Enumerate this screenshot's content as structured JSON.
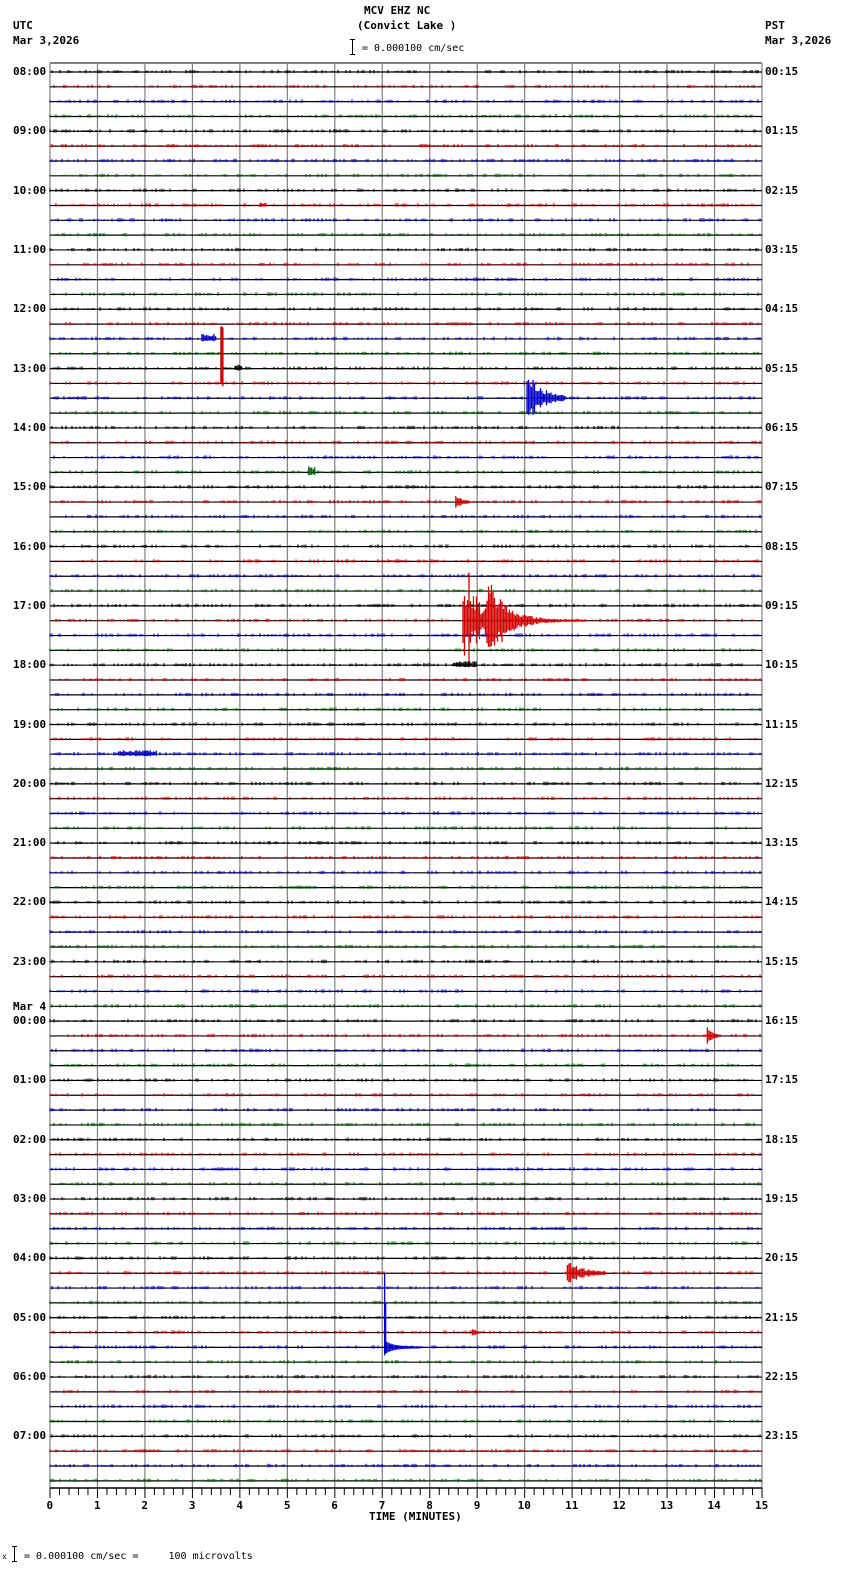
{
  "header": {
    "station": "MCV EHZ NC",
    "location": "(Convict Lake )",
    "left_tz": "UTC",
    "left_date": "Mar 3,2026",
    "right_tz": "PST",
    "right_date": "Mar 3,2026",
    "scale_text": "= 0.000100 cm/sec"
  },
  "footer": {
    "scale_text": "= 0.000100 cm/sec =     100 microvolts",
    "scale_prefix": "x"
  },
  "colors": {
    "trace_cycle": [
      "#000000",
      "#d00000",
      "#0000c8",
      "#006000"
    ],
    "baseline": "#000000",
    "grid": "#808080",
    "axis": "#000000"
  },
  "chart_data": {
    "type": "line",
    "title": "MCV EHZ NC (Convict Lake )",
    "subtitle": "Helicorder seismogram, 15 minutes per trace, 96 traces",
    "xlabel": "TIME (MINUTES)",
    "ylabel": "",
    "xlim": [
      0,
      15
    ],
    "x_ticks": [
      "0",
      "1",
      "2",
      "3",
      "4",
      "5",
      "6",
      "7",
      "8",
      "9",
      "10",
      "11",
      "12",
      "13",
      "14",
      "15"
    ],
    "grid": true,
    "traces_per_hour": 4,
    "trace_count": 96,
    "left_labels": [
      {
        "row": 0,
        "text": "08:00"
      },
      {
        "row": 4,
        "text": "09:00"
      },
      {
        "row": 8,
        "text": "10:00"
      },
      {
        "row": 12,
        "text": "11:00"
      },
      {
        "row": 16,
        "text": "12:00"
      },
      {
        "row": 20,
        "text": "13:00"
      },
      {
        "row": 24,
        "text": "14:00"
      },
      {
        "row": 28,
        "text": "15:00"
      },
      {
        "row": 32,
        "text": "16:00"
      },
      {
        "row": 36,
        "text": "17:00"
      },
      {
        "row": 40,
        "text": "18:00"
      },
      {
        "row": 44,
        "text": "19:00"
      },
      {
        "row": 48,
        "text": "20:00"
      },
      {
        "row": 52,
        "text": "21:00"
      },
      {
        "row": 56,
        "text": "22:00"
      },
      {
        "row": 60,
        "text": "23:00"
      },
      {
        "row": 64,
        "text": "00:00",
        "date": "Mar 4"
      },
      {
        "row": 68,
        "text": "01:00"
      },
      {
        "row": 72,
        "text": "02:00"
      },
      {
        "row": 76,
        "text": "03:00"
      },
      {
        "row": 80,
        "text": "04:00"
      },
      {
        "row": 84,
        "text": "05:00"
      },
      {
        "row": 88,
        "text": "06:00"
      },
      {
        "row": 92,
        "text": "07:00"
      }
    ],
    "right_labels": [
      {
        "row": 0,
        "text": "00:15"
      },
      {
        "row": 4,
        "text": "01:15"
      },
      {
        "row": 8,
        "text": "02:15"
      },
      {
        "row": 12,
        "text": "03:15"
      },
      {
        "row": 16,
        "text": "04:15"
      },
      {
        "row": 20,
        "text": "05:15"
      },
      {
        "row": 24,
        "text": "06:15"
      },
      {
        "row": 28,
        "text": "07:15"
      },
      {
        "row": 32,
        "text": "08:15"
      },
      {
        "row": 36,
        "text": "09:15"
      },
      {
        "row": 40,
        "text": "10:15"
      },
      {
        "row": 44,
        "text": "11:15"
      },
      {
        "row": 48,
        "text": "12:15"
      },
      {
        "row": 52,
        "text": "13:15"
      },
      {
        "row": 56,
        "text": "14:15"
      },
      {
        "row": 60,
        "text": "15:15"
      },
      {
        "row": 64,
        "text": "16:15"
      },
      {
        "row": 68,
        "text": "17:15"
      },
      {
        "row": 72,
        "text": "18:15"
      },
      {
        "row": 76,
        "text": "19:15"
      },
      {
        "row": 80,
        "text": "20:15"
      },
      {
        "row": 84,
        "text": "21:15"
      },
      {
        "row": 88,
        "text": "22:15"
      },
      {
        "row": 92,
        "text": "23:15"
      }
    ],
    "events": [
      {
        "row": 9,
        "minute": 4.45,
        "duration": 0.1,
        "amp": 3,
        "kind": "blip"
      },
      {
        "row": 18,
        "minute": 3.2,
        "duration": 0.3,
        "amp": 5,
        "kind": "blip"
      },
      {
        "row": 21,
        "minute": 3.6,
        "duration": 0.12,
        "amp": 57,
        "kind": "spike_up"
      },
      {
        "row": 20,
        "minute": 3.9,
        "duration": 0.15,
        "amp": 4,
        "kind": "blip"
      },
      {
        "row": 22,
        "minute": 10.05,
        "duration": 0.8,
        "amp": 26,
        "kind": "quake"
      },
      {
        "row": 27,
        "minute": 5.45,
        "duration": 0.15,
        "amp": 6,
        "kind": "blip"
      },
      {
        "row": 29,
        "minute": 8.55,
        "duration": 0.3,
        "amp": 8,
        "kind": "quake"
      },
      {
        "row": 37,
        "minute": 8.7,
        "duration": 2.6,
        "amp": 52,
        "kind": "quake_big"
      },
      {
        "row": 40,
        "minute": 8.5,
        "duration": 0.5,
        "amp": 4,
        "kind": "blip"
      },
      {
        "row": 46,
        "minute": 1.45,
        "duration": 0.8,
        "amp": 4,
        "kind": "blip"
      },
      {
        "row": 65,
        "minute": 13.85,
        "duration": 0.25,
        "amp": 8,
        "kind": "quake"
      },
      {
        "row": 81,
        "minute": 10.9,
        "duration": 0.8,
        "amp": 12,
        "kind": "quake"
      },
      {
        "row": 85,
        "minute": 8.9,
        "duration": 0.15,
        "amp": 5,
        "kind": "quake"
      },
      {
        "row": 86,
        "minute": 7.05,
        "duration": 0.8,
        "amp": 74,
        "kind": "spike_decay"
      }
    ]
  }
}
